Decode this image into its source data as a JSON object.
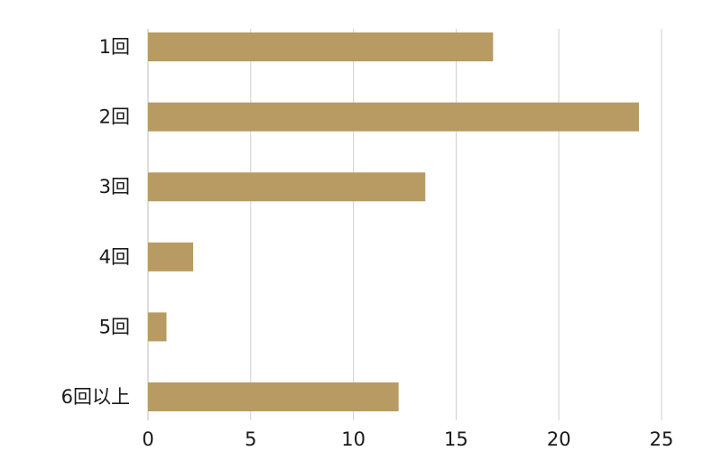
{
  "chart_data": {
    "type": "bar",
    "orientation": "horizontal",
    "categories": [
      "1回",
      "2回",
      "3回",
      "4回",
      "5回",
      "6回以上"
    ],
    "values": [
      16.8,
      23.9,
      13.5,
      2.2,
      0.9,
      12.2
    ],
    "xlim": [
      0,
      25
    ],
    "xticks": [
      0,
      5,
      10,
      15,
      20,
      25
    ],
    "grid": true,
    "legend": "none",
    "bar_color": "#b89b62",
    "title": "",
    "xlabel": "",
    "ylabel": ""
  }
}
